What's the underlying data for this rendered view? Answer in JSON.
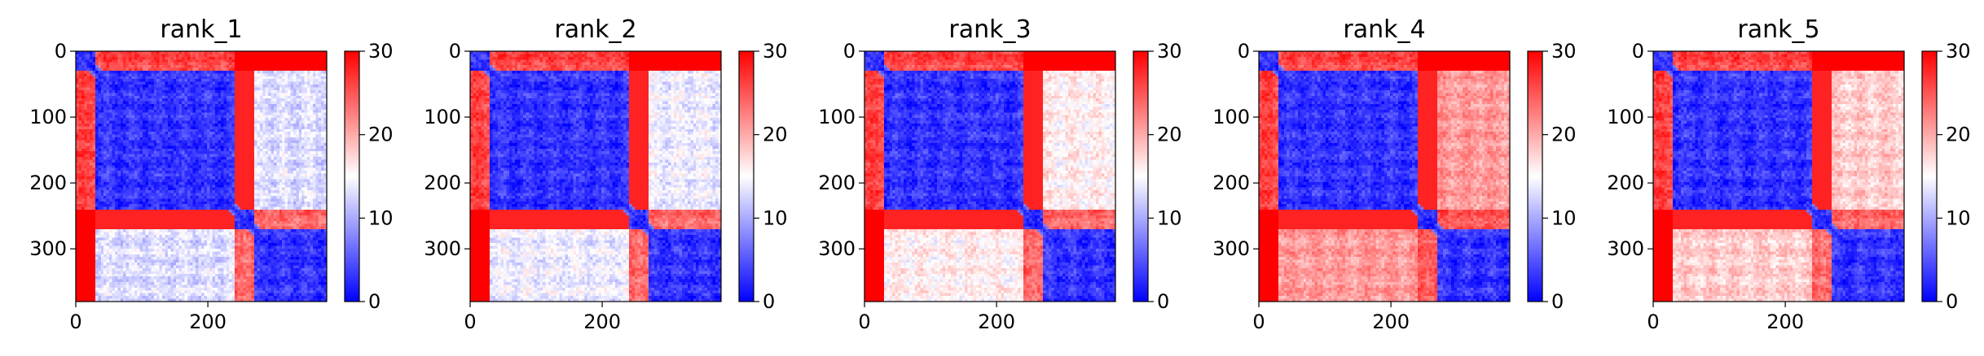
{
  "chart_data": {
    "type": "heatmap",
    "colormap": "bwr",
    "vmin": 0,
    "vmax": 30,
    "colorbar_ticks": [
      "0",
      "10",
      "20",
      "30"
    ],
    "grid": false,
    "n_residues": 380,
    "panels": [
      {
        "title": "rank_1",
        "x_ticks": [
          "0",
          "200"
        ],
        "y_ticks": [
          "0",
          "100",
          "200",
          "300"
        ],
        "xlim": [
          0,
          380
        ],
        "ylim": [
          380,
          0
        ],
        "domains": [
          [
            0,
            30
          ],
          [
            30,
            240
          ],
          [
            240,
            270
          ],
          [
            270,
            380
          ]
        ],
        "block_mean_distance": [
          [
            3,
            26,
            30,
            30
          ],
          [
            26,
            3,
            28,
            13
          ],
          [
            30,
            28,
            3,
            24
          ],
          [
            30,
            13,
            24,
            3
          ]
        ]
      },
      {
        "title": "rank_2",
        "x_ticks": [
          "0",
          "200"
        ],
        "y_ticks": [
          "0",
          "100",
          "200",
          "300"
        ],
        "xlim": [
          0,
          380
        ],
        "ylim": [
          380,
          0
        ],
        "domains": [
          [
            0,
            30
          ],
          [
            30,
            240
          ],
          [
            240,
            270
          ],
          [
            270,
            380
          ]
        ],
        "block_mean_distance": [
          [
            3,
            26,
            30,
            30
          ],
          [
            26,
            3,
            28,
            14
          ],
          [
            30,
            28,
            3,
            24
          ],
          [
            30,
            14,
            24,
            3
          ]
        ]
      },
      {
        "title": "rank_3",
        "x_ticks": [
          "0",
          "200"
        ],
        "y_ticks": [
          "0",
          "100",
          "200",
          "300"
        ],
        "xlim": [
          0,
          380
        ],
        "ylim": [
          380,
          0
        ],
        "domains": [
          [
            0,
            30
          ],
          [
            30,
            240
          ],
          [
            240,
            270
          ],
          [
            270,
            380
          ]
        ],
        "block_mean_distance": [
          [
            3,
            26,
            30,
            30
          ],
          [
            26,
            3,
            28,
            16
          ],
          [
            30,
            28,
            3,
            24
          ],
          [
            30,
            16,
            24,
            3
          ]
        ]
      },
      {
        "title": "rank_4",
        "x_ticks": [
          "0",
          "200"
        ],
        "y_ticks": [
          "0",
          "100",
          "200",
          "300"
        ],
        "xlim": [
          0,
          380
        ],
        "ylim": [
          380,
          0
        ],
        "domains": [
          [
            0,
            30
          ],
          [
            30,
            240
          ],
          [
            240,
            270
          ],
          [
            270,
            380
          ]
        ],
        "block_mean_distance": [
          [
            3,
            26,
            30,
            30
          ],
          [
            26,
            3,
            28,
            21
          ],
          [
            30,
            28,
            3,
            25
          ],
          [
            30,
            21,
            25,
            3
          ]
        ]
      },
      {
        "title": "rank_5",
        "x_ticks": [
          "0",
          "200"
        ],
        "y_ticks": [
          "0",
          "100",
          "200",
          "300"
        ],
        "xlim": [
          0,
          380
        ],
        "ylim": [
          380,
          0
        ],
        "domains": [
          [
            0,
            30
          ],
          [
            30,
            240
          ],
          [
            240,
            270
          ],
          [
            270,
            380
          ]
        ],
        "block_mean_distance": [
          [
            3,
            26,
            30,
            30
          ],
          [
            26,
            3,
            28,
            18
          ],
          [
            30,
            28,
            3,
            24
          ],
          [
            30,
            18,
            24,
            3
          ]
        ]
      }
    ]
  }
}
